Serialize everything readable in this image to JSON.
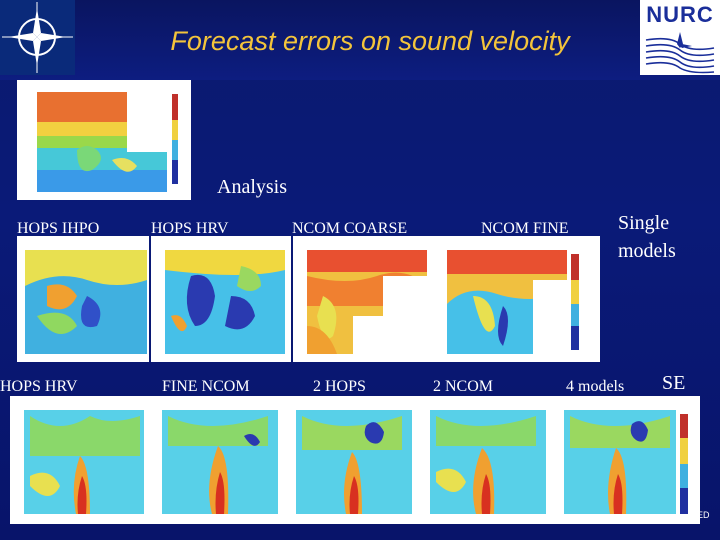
{
  "header": {
    "title": "Forecast errors on sound velocity",
    "logo_right_text": "NURC"
  },
  "analysis": {
    "label": "Analysis"
  },
  "row1": {
    "labels": [
      "HOPS IHPO",
      "HOPS HRV",
      "NCOM COARSE",
      "NCOM FINE"
    ],
    "side_label_line1": "Single",
    "side_label_line2": "models"
  },
  "row2": {
    "labels": [
      "HOPS HRV",
      "FINE NCOM",
      "2 HOPS",
      "2 NCOM",
      "4 models"
    ],
    "side_label": "SE"
  },
  "footer": {
    "classification": "ED"
  },
  "colors": {
    "title": "#f3c43b",
    "background": "#0a1a78",
    "nurc_blue": "#1a2e9a"
  }
}
